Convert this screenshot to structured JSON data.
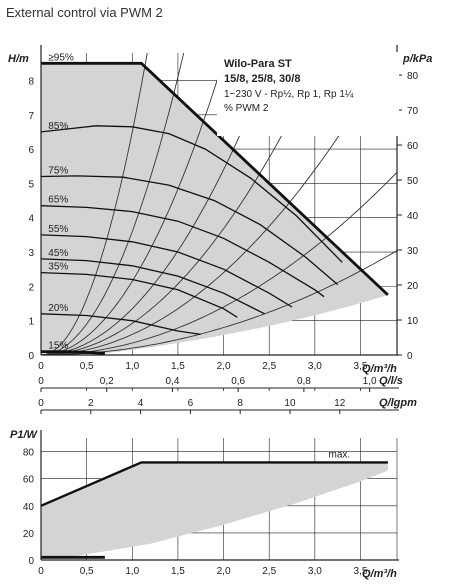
{
  "page_title": "External control via PWM 2",
  "chart_data": [
    {
      "type": "line",
      "title": "Wilo-Para ST",
      "subtitle": "15/8, 25/8, 30/8",
      "info_lines": [
        "1~230 V - Rp½, Rp 1, Rp 1¼",
        "% PWM 2"
      ],
      "xlabel": "Q/m³/h",
      "ylabel": "H/m",
      "ylabel_right": "p/kPa",
      "xlim": [
        0,
        3.9
      ],
      "ylim": [
        0,
        8.8
      ],
      "ylim_right": [
        0,
        86.3
      ],
      "x_ticks": [
        "0",
        "0,5",
        "1,0",
        "1,5",
        "2,0",
        "2,5",
        "3,0",
        "3,5"
      ],
      "y_ticks": [
        "0",
        "1",
        "2",
        "3",
        "4",
        "5",
        "6",
        "7",
        "8"
      ],
      "y_right_ticks": [
        "0",
        "10",
        "20",
        "30",
        "40",
        "50",
        "60",
        "70",
        "80"
      ],
      "secondary_x_axes": [
        {
          "label": "Q/l/s",
          "ticks": [
            "0",
            "0,2",
            "0,4",
            "0,6",
            "0,8",
            "1,0"
          ],
          "values": [
            0,
            0.2,
            0.4,
            0.6,
            0.8,
            1.0
          ]
        },
        {
          "label": "Q/lgpm",
          "ticks": [
            "0",
            "2",
            "4",
            "6",
            "8",
            "10",
            "12"
          ],
          "values": [
            0,
            2,
            4,
            6,
            8,
            10,
            12
          ]
        }
      ],
      "grid": true,
      "envelope": {
        "name": "≥95%",
        "x": [
          0,
          1.1,
          3.8
        ],
        "y": [
          8.5,
          8.5,
          1.75
        ]
      },
      "series": [
        {
          "name": "85%",
          "x": [
            0,
            0.2,
            0.6,
            1.0,
            1.4,
            1.8,
            2.3,
            2.8,
            3.3
          ],
          "y": [
            6.5,
            6.56,
            6.68,
            6.65,
            6.45,
            6.0,
            5.15,
            4.05,
            2.7
          ]
        },
        {
          "name": "75%",
          "x": [
            0,
            0.4,
            0.9,
            1.4,
            1.9,
            2.4,
            2.9,
            3.25
          ],
          "y": [
            5.2,
            5.22,
            5.18,
            4.95,
            4.5,
            3.8,
            2.85,
            2.05
          ]
        },
        {
          "name": "65%",
          "x": [
            0,
            0.5,
            1.0,
            1.5,
            2.0,
            2.5,
            3.0,
            3.1
          ],
          "y": [
            4.35,
            4.3,
            4.18,
            3.9,
            3.4,
            2.7,
            1.9,
            1.7
          ]
        },
        {
          "name": "55%",
          "x": [
            0,
            0.5,
            1.0,
            1.5,
            2.0,
            2.5,
            2.75
          ],
          "y": [
            3.5,
            3.45,
            3.3,
            3.0,
            2.5,
            1.8,
            1.4
          ]
        },
        {
          "name": "45%",
          "x": [
            0,
            0.5,
            1.0,
            1.5,
            2.0,
            2.45
          ],
          "y": [
            2.8,
            2.75,
            2.6,
            2.3,
            1.8,
            1.2
          ]
        },
        {
          "name": "35%",
          "x": [
            0,
            0.5,
            1.0,
            1.5,
            2.0,
            2.15
          ],
          "y": [
            2.4,
            2.35,
            2.2,
            1.9,
            1.35,
            1.1
          ]
        },
        {
          "name": "20%",
          "x": [
            0,
            0.5,
            1.0,
            1.5,
            1.75
          ],
          "y": [
            1.2,
            1.15,
            1.0,
            0.7,
            0.6
          ]
        },
        {
          "name": "15%",
          "x": [
            0,
            0.3,
            0.7
          ],
          "y": [
            0.1,
            0.1,
            0.05
          ]
        }
      ],
      "system_curves_k": [
        6.5,
        3.6,
        2.15,
        1.35,
        0.92,
        0.6,
        0.35,
        0.2
      ]
    },
    {
      "type": "line",
      "xlabel": "Q/m³/h",
      "ylabel": "P1/W",
      "xlim": [
        0,
        3.9
      ],
      "ylim": [
        0,
        90
      ],
      "x_ticks": [
        "0",
        "0,5",
        "1,0",
        "1,5",
        "2,0",
        "2,5",
        "3,0",
        "3,5"
      ],
      "y_ticks": [
        "0",
        "20",
        "40",
        "60",
        "80"
      ],
      "grid": true,
      "series": [
        {
          "name": "max.",
          "x": [
            0,
            1.1,
            3.8
          ],
          "y": [
            40,
            72,
            72
          ]
        },
        {
          "name": "",
          "x": [
            0,
            0.7
          ],
          "y": [
            2,
            2
          ]
        }
      ],
      "area_lower": {
        "x": [
          0.3,
          1.2,
          2.0,
          2.8,
          3.5,
          3.8
        ],
        "y": [
          2,
          12,
          26,
          42,
          58,
          66
        ]
      }
    }
  ]
}
